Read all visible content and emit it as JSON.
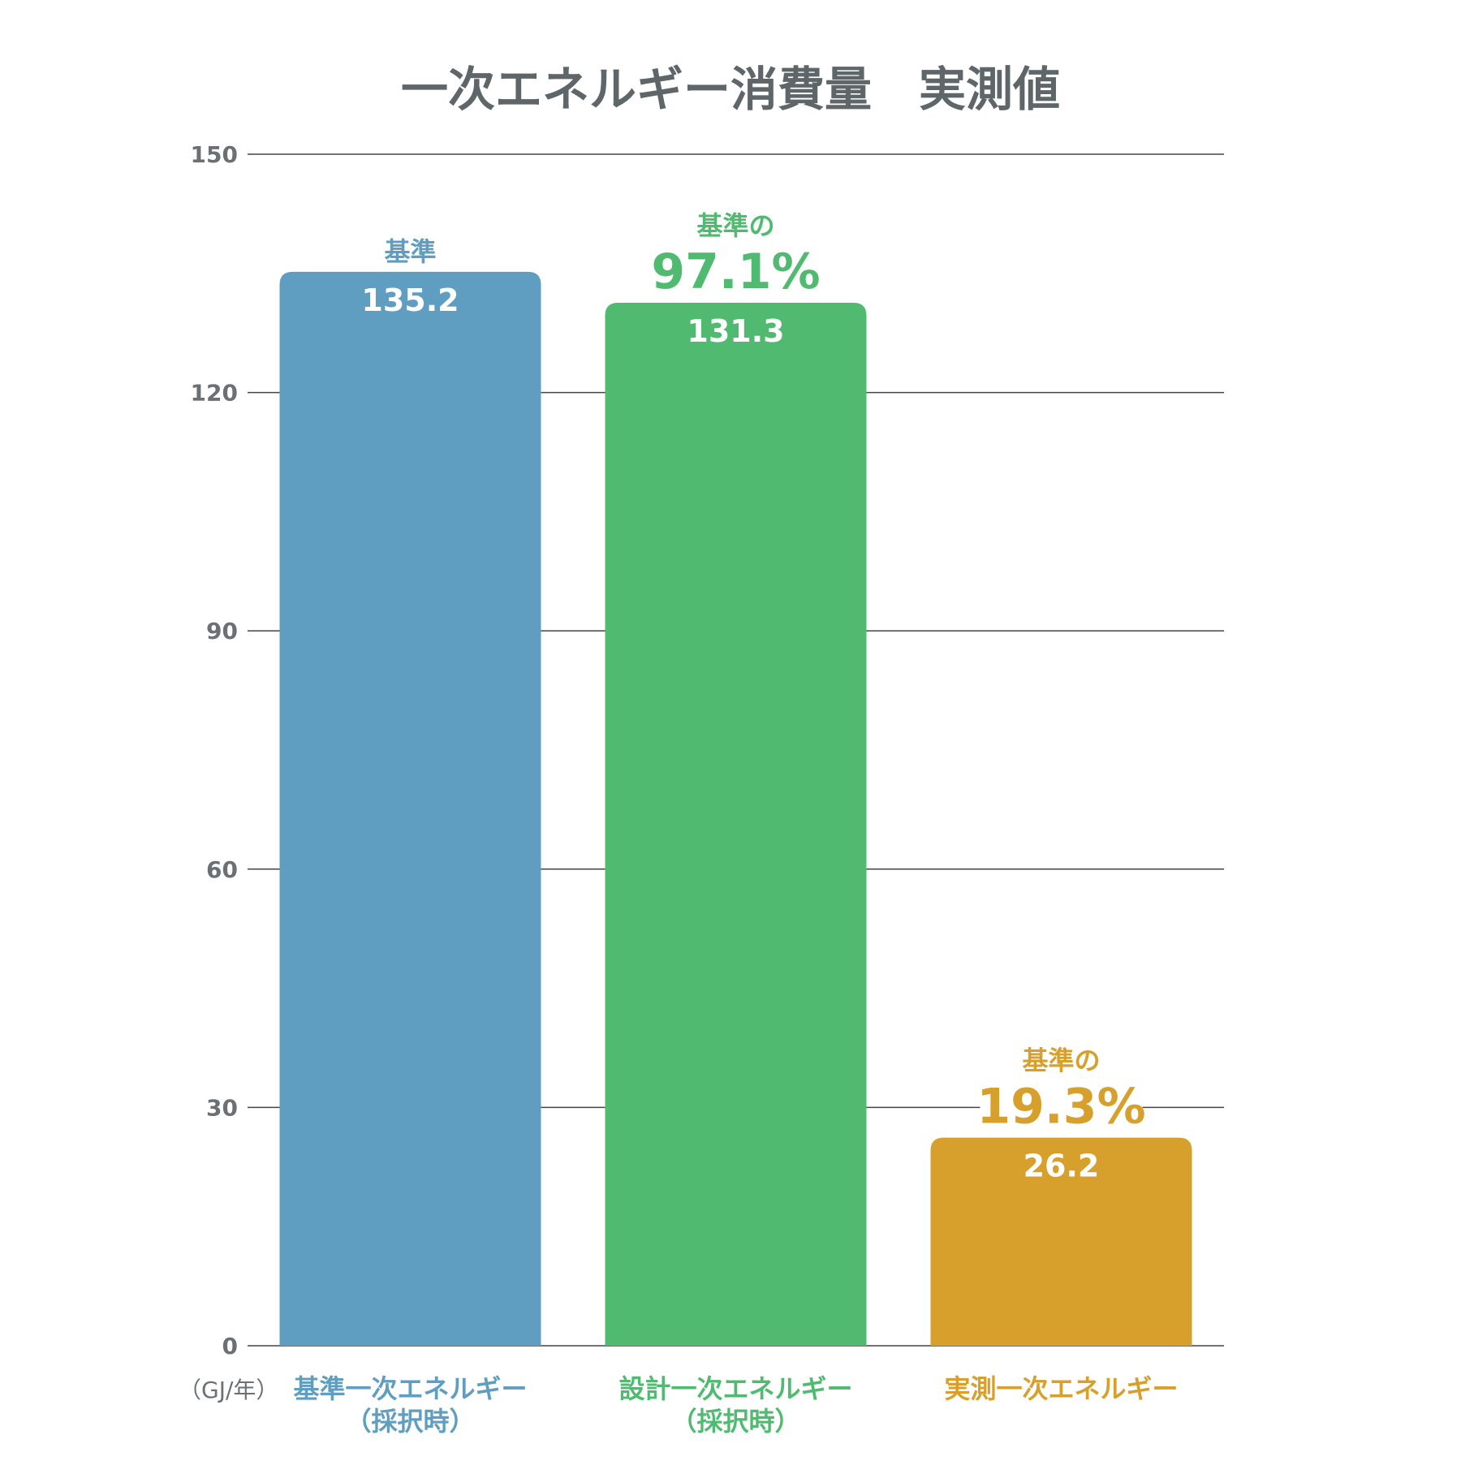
{
  "chart_data": {
    "type": "bar",
    "title": "一次エネルギー消費量　実測値",
    "unit_label": "（GJ/年）",
    "ylim": [
      0,
      150
    ],
    "yticks": [
      0,
      30,
      60,
      90,
      120,
      150
    ],
    "grid": true,
    "categories": [
      {
        "lines": [
          "基準一次エネルギー",
          "（採択時）"
        ],
        "color": "#5f9ec0"
      },
      {
        "lines": [
          "設計一次エネルギー",
          "（採択時）"
        ],
        "color": "#50bb70"
      },
      {
        "lines": [
          "実測一次エネルギー"
        ],
        "color": "#d7a02d"
      }
    ],
    "values": [
      135.2,
      131.3,
      26.2
    ],
    "value_labels": [
      "135.2",
      "131.3",
      "26.2"
    ],
    "annotations": [
      {
        "note": "基準",
        "pct": ""
      },
      {
        "note": "基準の",
        "pct": "97.1%"
      },
      {
        "note": "基準の",
        "pct": "19.3%"
      }
    ]
  }
}
